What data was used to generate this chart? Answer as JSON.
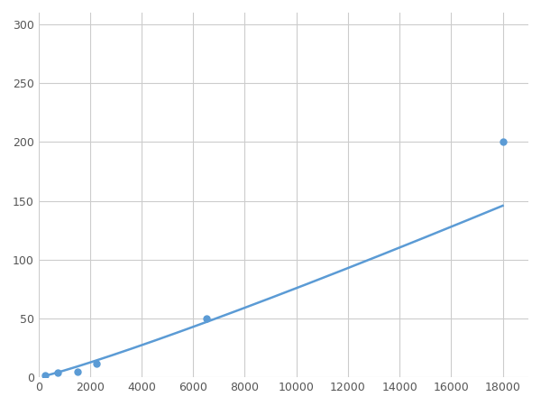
{
  "x_points": [
    250,
    750,
    1500,
    2250,
    6500,
    18000
  ],
  "y_points": [
    2,
    4,
    5,
    12,
    50,
    200
  ],
  "line_color": "#5B9BD5",
  "marker_color": "#5B9BD5",
  "xlim": [
    0,
    19000
  ],
  "ylim": [
    0,
    310
  ],
  "xticks": [
    0,
    2000,
    4000,
    6000,
    8000,
    10000,
    12000,
    14000,
    16000,
    18000
  ],
  "yticks": [
    0,
    50,
    100,
    150,
    200,
    250,
    300
  ],
  "grid_color": "#CCCCCC",
  "background_color": "#FFFFFF",
  "marker_size": 5,
  "line_width": 1.8,
  "power_a": 0.0015,
  "power_b": 1.42
}
